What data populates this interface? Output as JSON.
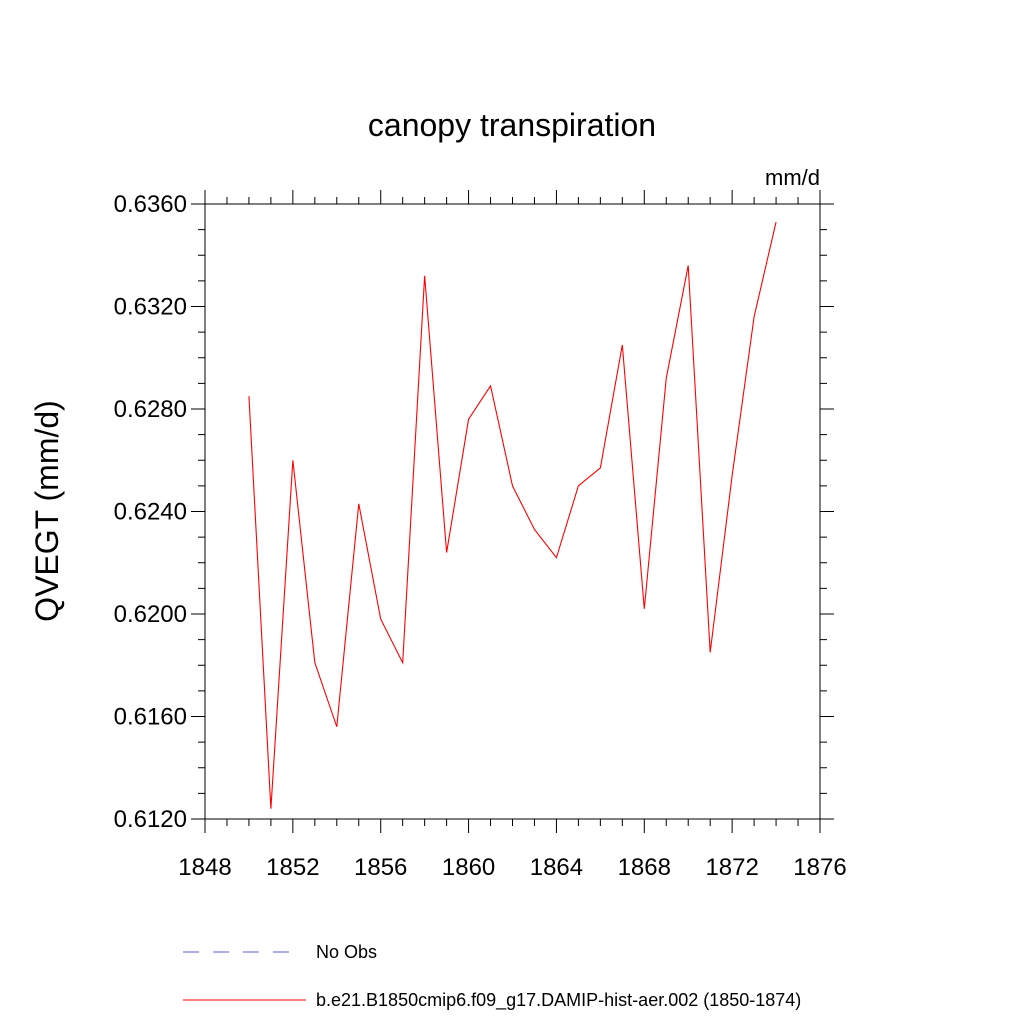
{
  "chart_data": {
    "type": "line",
    "title": "canopy transpiration",
    "units": "mm/d",
    "xlabel": "",
    "ylabel": "QVEGT  (mm/d)",
    "xlim": [
      1848,
      1876
    ],
    "ylim": [
      0.612,
      0.636
    ],
    "x_ticks": [
      "1848",
      "1852",
      "1856",
      "1860",
      "1864",
      "1868",
      "1872",
      "1876"
    ],
    "y_ticks": [
      "0.6120",
      "0.6160",
      "0.6200",
      "0.6240",
      "0.6280",
      "0.6320",
      "0.6360"
    ],
    "grid": false,
    "series": [
      {
        "name": "No Obs",
        "color": "#5b5bd6",
        "dash": "dashed",
        "x": [],
        "values": []
      },
      {
        "name": "b.e21.B1850cmip6.f09_g17.DAMIP-hist-aer.002 (1850-1874)",
        "color": "#ff0000",
        "dash": "solid",
        "x": [
          1850,
          1851,
          1852,
          1853,
          1854,
          1855,
          1856,
          1857,
          1858,
          1859,
          1860,
          1861,
          1862,
          1863,
          1864,
          1865,
          1866,
          1867,
          1868,
          1869,
          1870,
          1871,
          1872,
          1873,
          1874
        ],
        "values": [
          0.6285,
          0.6124,
          0.626,
          0.6181,
          0.6156,
          0.6243,
          0.6198,
          0.6181,
          0.6332,
          0.6224,
          0.6276,
          0.6289,
          0.625,
          0.6233,
          0.6222,
          0.625,
          0.6257,
          0.6305,
          0.6202,
          0.6292,
          0.6336,
          0.6185,
          0.6254,
          0.6316,
          0.6353
        ]
      }
    ],
    "legend_position": "bottom"
  }
}
